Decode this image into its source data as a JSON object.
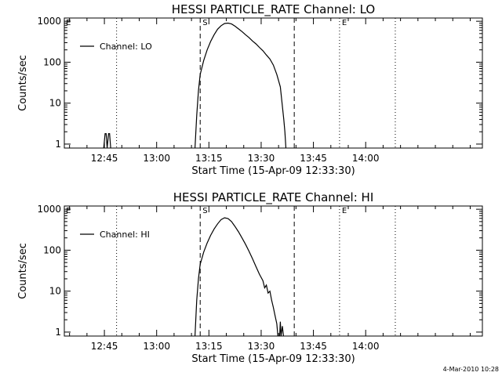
{
  "chart_data": [
    {
      "type": "line",
      "title": "HESSI PARTICLE_RATE Channel: LO",
      "ylabel": "Counts/sec",
      "xlabel": "Start Time (15-Apr-09 12:33:30)",
      "ytick_labels": [
        "1",
        "10",
        "100",
        "1000"
      ],
      "yticks": [
        1,
        10,
        100,
        1000
      ],
      "yscale": "log",
      "ylim": [
        0.8,
        1200
      ],
      "xlim": [
        0,
        120
      ],
      "xtick_labels": [
        "12:45",
        "13:00",
        "13:15",
        "13:30",
        "13:45",
        "14:00"
      ],
      "xticks": [
        11.5,
        26.5,
        41.5,
        56.5,
        71.5,
        86.5
      ],
      "legend": [
        "Channel: LO"
      ],
      "legend_position": "top-left",
      "vlines": [
        {
          "x": 15.0,
          "style": "dotted",
          "label": ""
        },
        {
          "x": 39.0,
          "style": "dashed",
          "label": "S"
        },
        {
          "x": 66.0,
          "style": "dashed",
          "label": ""
        },
        {
          "x": 79.0,
          "style": "dotted",
          "label": "E"
        },
        {
          "x": 95.0,
          "style": "dotted",
          "label": ""
        }
      ],
      "corner_label": "E",
      "series": [
        {
          "name": "Channel: LO",
          "segments": [
            [
              [
                11.3,
                0.8
              ],
              [
                11.7,
                1.8
              ],
              [
                12.0,
                1.8
              ],
              [
                12.3,
                0.8
              ],
              [
                12.7,
                1.8
              ],
              [
                13.0,
                1.8
              ],
              [
                13.3,
                0.8
              ]
            ],
            [
              [
                37.5,
                0.8
              ],
              [
                38.0,
                5
              ],
              [
                38.5,
                20
              ],
              [
                39.0,
                50
              ],
              [
                40.0,
                110
              ],
              [
                41.0,
                200
              ],
              [
                42.0,
                320
              ],
              [
                43.0,
                470
              ],
              [
                44.0,
                640
              ],
              [
                45.0,
                780
              ],
              [
                46.0,
                880
              ],
              [
                47.0,
                900
              ],
              [
                48.0,
                860
              ],
              [
                49.0,
                760
              ],
              [
                50.0,
                650
              ],
              [
                51.0,
                560
              ],
              [
                52.0,
                470
              ],
              [
                53.0,
                400
              ],
              [
                54.0,
                330
              ],
              [
                55.0,
                280
              ],
              [
                56.0,
                230
              ],
              [
                57.0,
                190
              ],
              [
                58.0,
                150
              ],
              [
                59.0,
                120
              ],
              [
                60.0,
                85
              ],
              [
                61.0,
                50
              ],
              [
                62.0,
                25
              ],
              [
                62.5,
                10
              ],
              [
                63.0,
                4
              ],
              [
                63.3,
                2
              ],
              [
                63.6,
                0.8
              ]
            ]
          ]
        }
      ]
    },
    {
      "type": "line",
      "title": "HESSI PARTICLE_RATE Channel: HI",
      "ylabel": "Counts/sec",
      "xlabel": "Start Time (15-Apr-09 12:33:30)",
      "ytick_labels": [
        "1",
        "10",
        "100",
        "1000"
      ],
      "yticks": [
        1,
        10,
        100,
        1000
      ],
      "yscale": "log",
      "ylim": [
        0.8,
        1200
      ],
      "xlim": [
        0,
        120
      ],
      "xtick_labels": [
        "12:45",
        "13:00",
        "13:15",
        "13:30",
        "13:45",
        "14:00"
      ],
      "xticks": [
        11.5,
        26.5,
        41.5,
        56.5,
        71.5,
        86.5
      ],
      "legend": [
        "Channel: HI"
      ],
      "legend_position": "top-left",
      "vlines": [
        {
          "x": 15.0,
          "style": "dotted",
          "label": ""
        },
        {
          "x": 39.0,
          "style": "dashed",
          "label": "S"
        },
        {
          "x": 66.0,
          "style": "dashed",
          "label": ""
        },
        {
          "x": 79.0,
          "style": "dotted",
          "label": "E"
        },
        {
          "x": 95.0,
          "style": "dotted",
          "label": ""
        }
      ],
      "corner_label": "E",
      "series": [
        {
          "name": "Channel: HI",
          "segments": [
            [
              [
                37.5,
                0.8
              ],
              [
                38.0,
                6
              ],
              [
                38.5,
                20
              ],
              [
                39.0,
                45
              ],
              [
                40.0,
                90
              ],
              [
                41.0,
                150
              ],
              [
                42.0,
                230
              ],
              [
                43.0,
                330
              ],
              [
                44.0,
                440
              ],
              [
                45.0,
                560
              ],
              [
                46.0,
                620
              ],
              [
                47.0,
                590
              ],
              [
                48.0,
                500
              ],
              [
                49.0,
                380
              ],
              [
                50.0,
                280
              ],
              [
                51.0,
                200
              ],
              [
                52.0,
                140
              ],
              [
                53.0,
                95
              ],
              [
                54.0,
                62
              ],
              [
                55.0,
                40
              ],
              [
                56.0,
                26
              ],
              [
                57.0,
                18
              ],
              [
                57.5,
                12
              ],
              [
                58.0,
                14
              ],
              [
                58.5,
                9
              ],
              [
                59.0,
                10
              ],
              [
                59.5,
                6
              ],
              [
                60.0,
                4
              ],
              [
                60.5,
                2.5
              ],
              [
                61.0,
                1.6
              ],
              [
                61.3,
                0.8
              ]
            ],
            [
              [
                61.8,
                0.8
              ],
              [
                62.0,
                1.8
              ],
              [
                62.2,
                0.8
              ],
              [
                62.6,
                1.4
              ],
              [
                62.9,
                0.8
              ]
            ]
          ]
        }
      ]
    }
  ],
  "stamp": "4-Mar-2010 10:28"
}
